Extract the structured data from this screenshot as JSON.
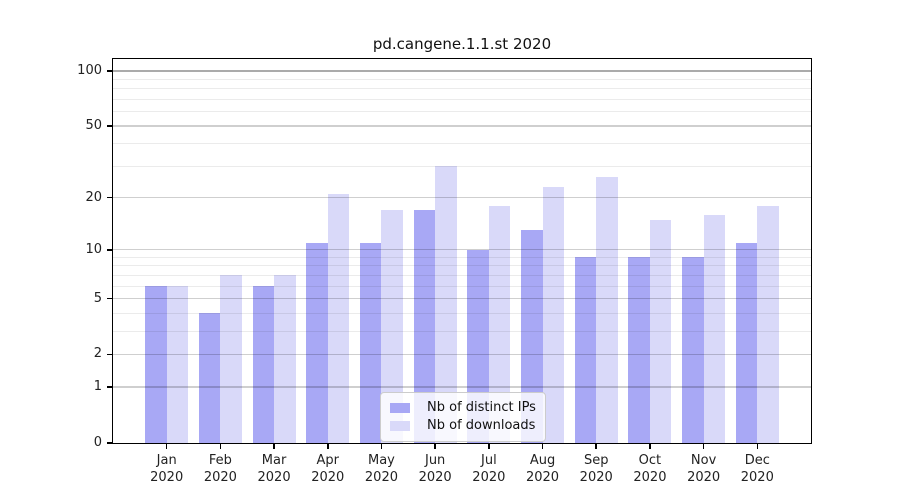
{
  "chart_data": {
    "type": "bar",
    "title": "pd.cangene.1.1.st 2020",
    "categories": [
      "Jan",
      "Feb",
      "Mar",
      "Apr",
      "May",
      "Jun",
      "Jul",
      "Aug",
      "Sep",
      "Oct",
      "Nov",
      "Dec"
    ],
    "year_label": "2020",
    "series": [
      {
        "name": "Nb of distinct IPs",
        "color": "#a8a8f5",
        "values": [
          6,
          4,
          6,
          11,
          11,
          17,
          10,
          13,
          9,
          9,
          9,
          11
        ]
      },
      {
        "name": "Nb of downloads",
        "color": "#d9d9f9",
        "values": [
          6,
          7,
          7,
          21,
          17,
          30,
          18,
          23,
          26,
          15,
          16,
          18
        ]
      }
    ],
    "yscale": "log1p",
    "ylim": [
      0,
      115
    ],
    "yticks": [
      0,
      1,
      2,
      5,
      10,
      20,
      50,
      100
    ],
    "minor_gridlines": [
      3,
      4,
      6,
      7,
      8,
      9,
      30,
      40,
      60,
      70,
      80,
      90
    ],
    "grid": "on",
    "legend_position": "lower-center",
    "bar_width_fraction": 0.4,
    "colors": {
      "major_grid": "#cfcfcf",
      "top_major_grid": "#ababab",
      "minor_grid": "#ebebeb",
      "spine": "#000000",
      "text": "#222222"
    }
  }
}
